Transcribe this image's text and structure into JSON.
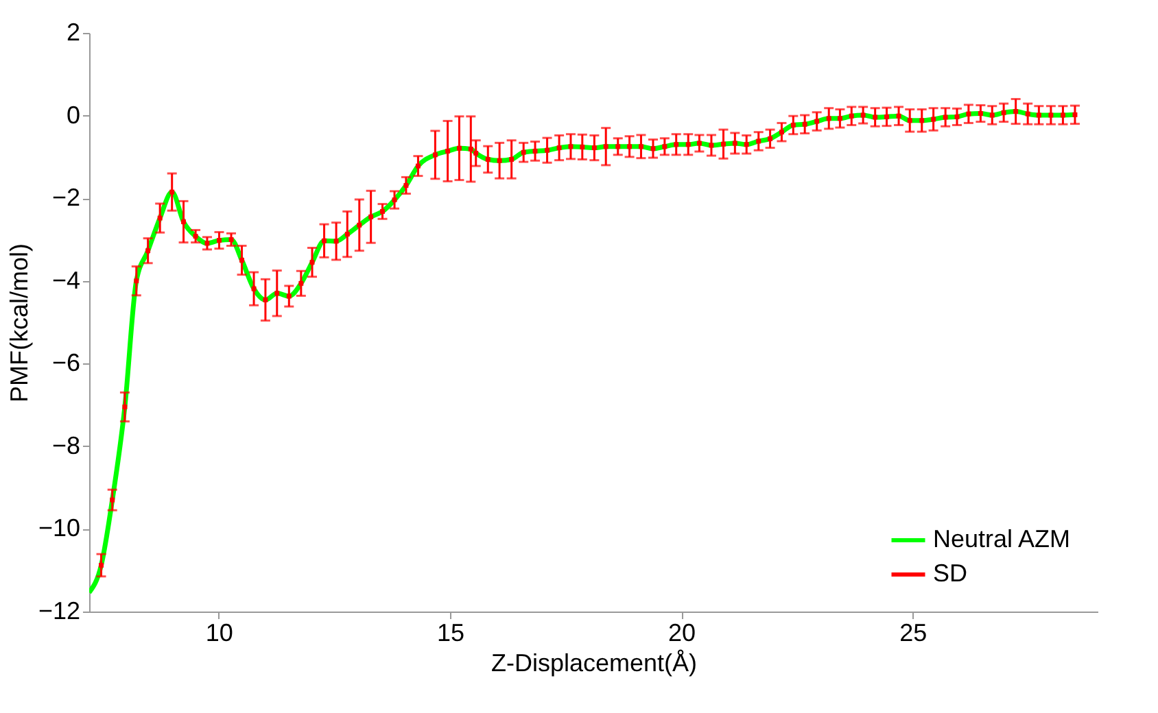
{
  "chart_data": {
    "type": "line",
    "xlabel": "Z-Displacement(Å)",
    "ylabel": "PMF(kcal/mol)",
    "xlim": [
      7.2,
      29.0
    ],
    "ylim": [
      -12,
      2
    ],
    "xticks": [
      10,
      15,
      20,
      25
    ],
    "yticks": [
      -12,
      -10,
      -8,
      -6,
      -4,
      -2,
      0,
      2
    ],
    "grid": false,
    "legend": "bottom right",
    "series": [
      {
        "name": "Neutral AZM",
        "color": "#00ff00",
        "marker": "none",
        "line_style": "solid",
        "x": [
          7.2,
          7.46,
          7.7,
          7.97,
          8.22,
          8.47,
          8.73,
          8.99,
          9.24,
          9.5,
          9.75,
          10.01,
          10.27,
          10.5,
          10.76,
          11.01,
          11.26,
          11.52,
          11.78,
          12.02,
          12.28,
          12.54,
          12.78,
          13.04,
          13.29,
          13.54,
          13.8,
          14.05,
          14.31,
          14.68,
          14.95,
          15.2,
          15.45,
          15.56,
          15.82,
          16.07,
          16.33,
          16.59,
          16.84,
          17.1,
          17.36,
          17.61,
          17.86,
          18.12,
          18.37,
          18.63,
          18.88,
          19.13,
          19.39,
          19.64,
          19.89,
          20.15,
          20.39,
          20.65,
          20.91,
          21.16,
          21.41,
          21.67,
          21.92,
          22.17,
          22.42,
          22.67,
          22.93,
          23.19,
          23.43,
          23.68,
          23.93,
          24.19,
          24.44,
          24.7,
          24.94,
          25.2,
          25.45,
          25.71,
          25.96,
          26.21,
          26.47,
          26.72,
          26.97,
          27.23,
          27.49,
          27.73,
          27.99,
          28.25,
          28.51
        ],
        "values": [
          -11.54,
          -10.88,
          -9.3,
          -7.05,
          -4.0,
          -3.27,
          -2.48,
          -1.85,
          -2.57,
          -2.92,
          -3.09,
          -3.02,
          -3.0,
          -3.5,
          -4.19,
          -4.46,
          -4.3,
          -4.37,
          -4.06,
          -3.55,
          -3.03,
          -3.04,
          -2.87,
          -2.65,
          -2.45,
          -2.32,
          -2.04,
          -1.69,
          -1.22,
          -0.95,
          -0.86,
          -0.79,
          -0.81,
          -0.91,
          -1.06,
          -1.09,
          -1.06,
          -0.89,
          -0.86,
          -0.84,
          -0.78,
          -0.75,
          -0.76,
          -0.78,
          -0.75,
          -0.75,
          -0.75,
          -0.75,
          -0.8,
          -0.75,
          -0.7,
          -0.7,
          -0.67,
          -0.72,
          -0.69,
          -0.67,
          -0.7,
          -0.62,
          -0.56,
          -0.4,
          -0.23,
          -0.21,
          -0.14,
          -0.07,
          -0.07,
          -0.01,
          0.01,
          -0.04,
          -0.03,
          -0.01,
          -0.12,
          -0.12,
          -0.09,
          -0.04,
          -0.03,
          0.04,
          0.05,
          0.01,
          0.07,
          0.1,
          0.04,
          0.01,
          0.01,
          0.01,
          0.02
        ]
      },
      {
        "name": "SD",
        "type": "scatter",
        "color": "#ff0000",
        "marker": "square",
        "x": [
          7.46,
          7.7,
          7.97,
          8.22,
          8.47,
          8.73,
          8.99,
          9.24,
          9.5,
          9.75,
          10.01,
          10.27,
          10.5,
          10.76,
          11.01,
          11.26,
          11.52,
          11.78,
          12.02,
          12.28,
          12.54,
          12.78,
          13.04,
          13.29,
          13.54,
          13.8,
          14.05,
          14.31,
          14.68,
          14.95,
          15.2,
          15.45,
          15.56,
          15.82,
          16.07,
          16.33,
          16.59,
          16.84,
          17.1,
          17.36,
          17.61,
          17.86,
          18.12,
          18.37,
          18.63,
          18.88,
          19.13,
          19.39,
          19.64,
          19.89,
          20.15,
          20.39,
          20.65,
          20.91,
          21.16,
          21.41,
          21.67,
          21.92,
          22.17,
          22.42,
          22.67,
          22.93,
          23.19,
          23.43,
          23.68,
          23.93,
          24.19,
          24.44,
          24.7,
          24.94,
          25.2,
          25.45,
          25.71,
          25.96,
          26.21,
          26.47,
          26.72,
          26.97,
          27.23,
          27.49,
          27.73,
          27.99,
          28.25,
          28.51
        ],
        "values": [
          -10.88,
          -9.3,
          -7.05,
          -4.0,
          -3.27,
          -2.48,
          -1.85,
          -2.57,
          -2.92,
          -3.09,
          -3.02,
          -3.0,
          -3.5,
          -4.19,
          -4.46,
          -4.3,
          -4.37,
          -4.06,
          -3.55,
          -3.03,
          -3.04,
          -2.87,
          -2.65,
          -2.45,
          -2.32,
          -2.04,
          -1.69,
          -1.22,
          -0.95,
          -0.86,
          -0.79,
          -0.81,
          -0.91,
          -1.06,
          -1.09,
          -1.06,
          -0.89,
          -0.86,
          -0.84,
          -0.78,
          -0.75,
          -0.76,
          -0.78,
          -0.75,
          -0.75,
          -0.75,
          -0.75,
          -0.8,
          -0.75,
          -0.7,
          -0.7,
          -0.67,
          -0.72,
          -0.69,
          -0.67,
          -0.7,
          -0.62,
          -0.56,
          -0.4,
          -0.23,
          -0.21,
          -0.14,
          -0.07,
          -0.07,
          -0.01,
          0.01,
          -0.04,
          -0.03,
          -0.01,
          -0.12,
          -0.12,
          -0.09,
          -0.04,
          -0.03,
          0.04,
          0.05,
          0.01,
          0.07,
          0.1,
          0.04,
          0.01,
          0.01,
          0.01,
          0.02
        ],
        "errors": [
          0.27,
          0.25,
          0.35,
          0.35,
          0.3,
          0.35,
          0.45,
          0.5,
          0.15,
          0.15,
          0.2,
          0.15,
          0.35,
          0.4,
          0.5,
          0.55,
          0.25,
          0.3,
          0.35,
          0.4,
          0.45,
          0.55,
          0.62,
          0.63,
          0.18,
          0.21,
          0.2,
          0.24,
          0.58,
          0.73,
          0.77,
          0.79,
          0.31,
          0.32,
          0.43,
          0.46,
          0.23,
          0.23,
          0.3,
          0.3,
          0.3,
          0.3,
          0.3,
          0.45,
          0.2,
          0.25,
          0.28,
          0.22,
          0.2,
          0.25,
          0.25,
          0.2,
          0.25,
          0.35,
          0.25,
          0.22,
          0.22,
          0.22,
          0.22,
          0.22,
          0.22,
          0.22,
          0.25,
          0.22,
          0.22,
          0.2,
          0.22,
          0.22,
          0.22,
          0.27,
          0.27,
          0.27,
          0.22,
          0.2,
          0.22,
          0.2,
          0.22,
          0.22,
          0.3,
          0.25,
          0.22,
          0.22,
          0.22,
          0.22
        ]
      }
    ]
  }
}
